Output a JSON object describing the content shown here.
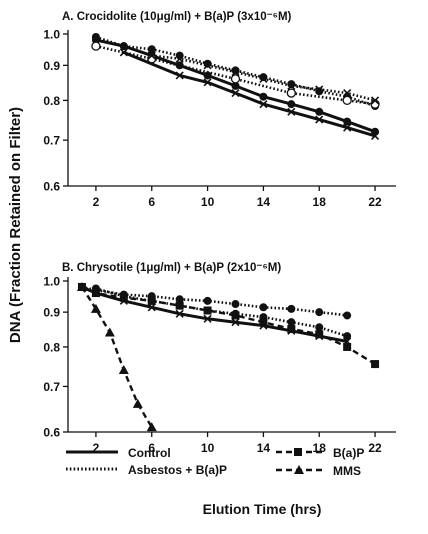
{
  "figure": {
    "ylabel": "DNA (Fraction Retained on Filter)",
    "xlabel": "Elution Time (hrs)"
  },
  "legend": [
    {
      "label": "Control",
      "line": "solid",
      "marker": "none"
    },
    {
      "label": "Asbestos + B(a)P",
      "line": "dotted",
      "marker": "none"
    },
    {
      "label": "B(a)P",
      "line": "dashed",
      "marker": "square"
    },
    {
      "label": "MMS",
      "line": "dashed",
      "marker": "triangle"
    }
  ],
  "chart_data": [
    {
      "type": "line",
      "title": "A. Crocidolite (10μg/ml) + B(a)P (3x10⁻⁶M)",
      "x_ticks": [
        "2",
        "6",
        "10",
        "14",
        "18",
        "22"
      ],
      "y_ticks": [
        "1.0",
        "0.9",
        "0.8",
        "0.7",
        "0.6"
      ],
      "ylim": [
        0.6,
        1.0
      ],
      "xlim": [
        0,
        23.5
      ],
      "y_scale": "log",
      "series": [
        {
          "name": "Control",
          "line": "solid",
          "marker": "circle-filled",
          "x": [
            2,
            4,
            6,
            8,
            10,
            12,
            14,
            16,
            18,
            20,
            22
          ],
          "y": [
            0.98,
            0.96,
            0.93,
            0.9,
            0.87,
            0.84,
            0.81,
            0.79,
            0.77,
            0.745,
            0.72
          ]
        },
        {
          "line": "solid",
          "marker": "x",
          "x": [
            4,
            8,
            10,
            12,
            14,
            16,
            18,
            20,
            22
          ],
          "y": [
            0.94,
            0.87,
            0.85,
            0.82,
            0.79,
            0.77,
            0.75,
            0.73,
            0.71
          ]
        },
        {
          "name": "Asbestos + B(a)P",
          "line": "dotted",
          "marker": "circle-filled",
          "x": [
            2,
            4,
            6,
            8,
            10,
            12,
            14,
            16,
            18,
            20,
            22
          ],
          "y": [
            0.99,
            0.96,
            0.95,
            0.93,
            0.905,
            0.885,
            0.865,
            0.845,
            0.825,
            0.81,
            0.785
          ]
        },
        {
          "line": "dotted",
          "marker": "circle-open",
          "x": [
            2,
            6,
            12,
            16,
            20,
            22
          ],
          "y": [
            0.96,
            0.92,
            0.86,
            0.82,
            0.8,
            0.79
          ]
        },
        {
          "line": "dotted",
          "marker": "x",
          "x": [
            6,
            8,
            10,
            12,
            14,
            16,
            18,
            20,
            22
          ],
          "y": [
            0.93,
            0.92,
            0.9,
            0.88,
            0.86,
            0.84,
            0.83,
            0.82,
            0.8
          ]
        }
      ]
    },
    {
      "type": "line",
      "title": "B. Chrysotile (1μg/ml) + B(a)P (2x10⁻⁶M)",
      "x_ticks": [
        "2",
        "6",
        "10",
        "14",
        "18",
        "22"
      ],
      "y_ticks": [
        "1.0",
        "0.9",
        "0.8",
        "0.7",
        "0.6"
      ],
      "ylim": [
        0.6,
        1.0
      ],
      "xlim": [
        0,
        23.5
      ],
      "y_scale": "log",
      "series": [
        {
          "name": "Control",
          "line": "solid",
          "marker": "x",
          "x": [
            1,
            2,
            4,
            6,
            8,
            10,
            12,
            14,
            16,
            18,
            20
          ],
          "y": [
            0.98,
            0.96,
            0.935,
            0.915,
            0.895,
            0.88,
            0.87,
            0.86,
            0.845,
            0.83,
            0.815
          ]
        },
        {
          "name": "Asbestos + B(a)P",
          "line": "dotted",
          "marker": "circle-filled",
          "x": [
            1,
            2,
            4,
            6,
            8,
            10,
            12,
            14,
            16,
            18,
            20
          ],
          "y": [
            0.98,
            0.97,
            0.955,
            0.95,
            0.94,
            0.935,
            0.925,
            0.915,
            0.91,
            0.9,
            0.89
          ]
        },
        {
          "line": "dotted",
          "marker": "circle-filled",
          "x": [
            2,
            4,
            6,
            8,
            10,
            12,
            14,
            16,
            18,
            20
          ],
          "y": [
            0.975,
            0.95,
            0.935,
            0.92,
            0.905,
            0.895,
            0.885,
            0.87,
            0.855,
            0.83
          ]
        },
        {
          "name": "B(a)P",
          "line": "dashed",
          "marker": "square",
          "x": [
            1,
            2,
            4,
            6,
            8,
            10,
            12,
            14,
            16,
            18,
            20,
            22
          ],
          "y": [
            0.98,
            0.96,
            0.945,
            0.935,
            0.92,
            0.905,
            0.89,
            0.87,
            0.85,
            0.835,
            0.8,
            0.755
          ]
        },
        {
          "name": "MMS",
          "line": "dashed",
          "marker": "triangle",
          "x": [
            1,
            2,
            3,
            4,
            5,
            6
          ],
          "y": [
            0.98,
            0.91,
            0.84,
            0.74,
            0.66,
            0.61
          ]
        }
      ]
    }
  ]
}
